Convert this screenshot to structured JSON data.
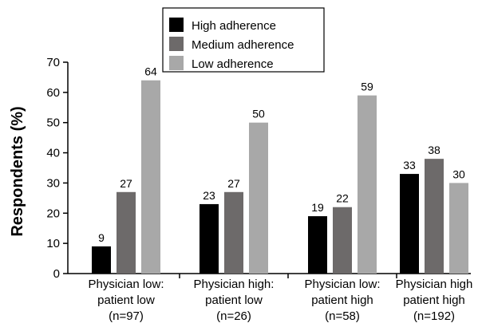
{
  "chart_data": {
    "type": "bar",
    "categories": [
      [
        "Physician low:",
        "patient low",
        "(n=97)"
      ],
      [
        "Physician high:",
        "patient low",
        "(n=26)"
      ],
      [
        "Physician low:",
        "patient high",
        "(n=58)"
      ],
      [
        "Physician high",
        "patient high",
        "(n=192)"
      ]
    ],
    "series": [
      {
        "name": "High adherence",
        "values": [
          9,
          23,
          19,
          33
        ],
        "color": "#000000"
      },
      {
        "name": "Medium adherence",
        "values": [
          27,
          27,
          22,
          38
        ],
        "color": "#6d6a6a"
      },
      {
        "name": "Low adherence",
        "values": [
          64,
          50,
          59,
          30
        ],
        "color": "#a8a8a8"
      }
    ],
    "ylabel": "Respondents (%)",
    "xlabel": "",
    "ylim": [
      0,
      70
    ],
    "yticks": [
      0,
      10,
      20,
      30,
      40,
      50,
      60,
      70
    ],
    "legend_position": "top-center",
    "grid": false
  }
}
